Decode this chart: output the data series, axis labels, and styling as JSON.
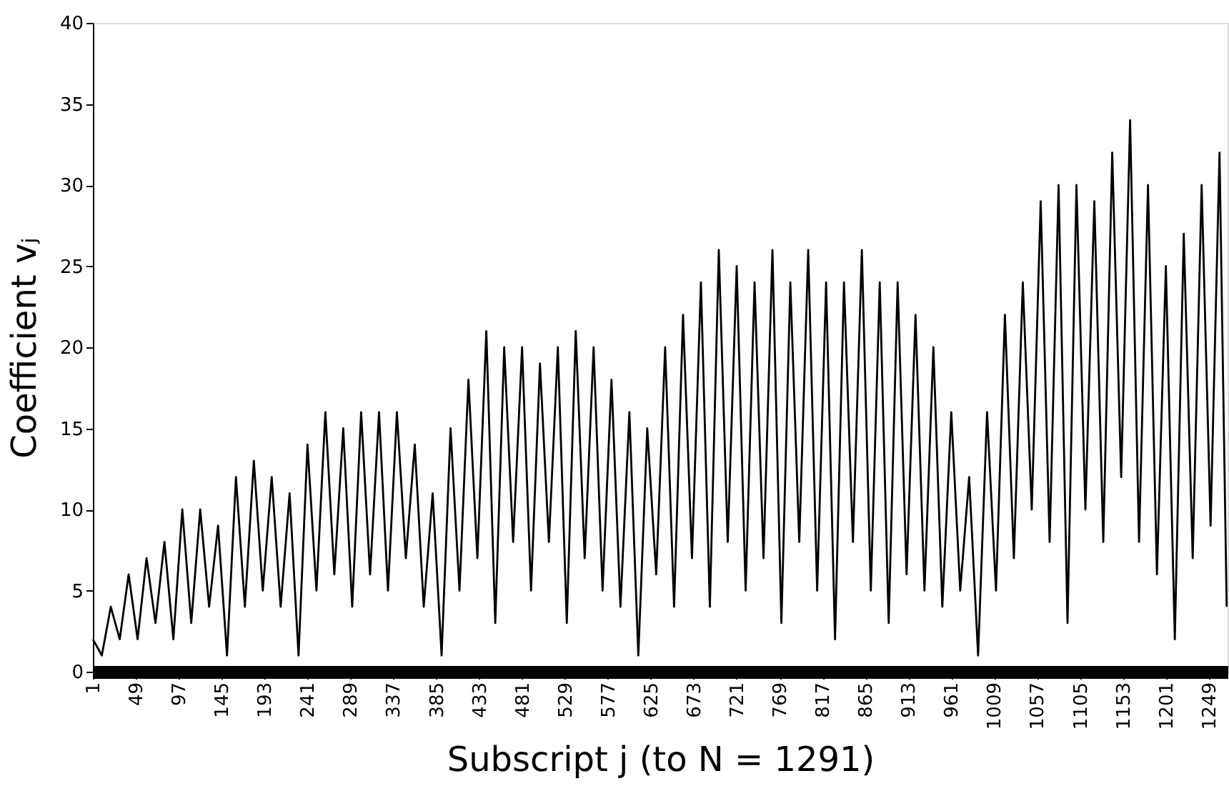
{
  "chart_data": {
    "type": "line",
    "xlabel": "Subscript j (to N = 1291)",
    "ylabel": "Coefficient vⱼ",
    "x": [
      1,
      11,
      21,
      31,
      41,
      51,
      61,
      71,
      81,
      91,
      101,
      111,
      121,
      131,
      141,
      151,
      161,
      171,
      181,
      191,
      201,
      211,
      221,
      231,
      241,
      251,
      261,
      271,
      281,
      291,
      301,
      311,
      321,
      331,
      341,
      351,
      361,
      371,
      381,
      391,
      401,
      411,
      421,
      431,
      441,
      451,
      461,
      471,
      481,
      491,
      501,
      511,
      521,
      531,
      541,
      551,
      561,
      571,
      581,
      591,
      601,
      611,
      621,
      631,
      641,
      651,
      661,
      671,
      681,
      691,
      701,
      711,
      721,
      731,
      741,
      751,
      761,
      771,
      781,
      791,
      801,
      811,
      821,
      831,
      841,
      851,
      861,
      871,
      881,
      891,
      901,
      911,
      921,
      931,
      941,
      951,
      961,
      971,
      981,
      991,
      1001,
      1011,
      1021,
      1031,
      1041,
      1051,
      1061,
      1071,
      1081,
      1091,
      1101,
      1111,
      1121,
      1131,
      1141,
      1151,
      1161,
      1171,
      1181,
      1191,
      1201,
      1211,
      1221,
      1231,
      1241,
      1251,
      1261,
      1269
    ],
    "series": [
      {
        "color": "#000000",
        "values": [
          2,
          1,
          4,
          2,
          6,
          2,
          7,
          3,
          8,
          2,
          10,
          3,
          10,
          4,
          9,
          1,
          12,
          4,
          13,
          5,
          12,
          4,
          11,
          1,
          14,
          5,
          16,
          6,
          15,
          4,
          16,
          6,
          16,
          5,
          16,
          7,
          14,
          4,
          11,
          1,
          15,
          5,
          18,
          7,
          21,
          3,
          20,
          8,
          20,
          5,
          19,
          8,
          20,
          3,
          21,
          7,
          20,
          5,
          18,
          4,
          16,
          1,
          15,
          6,
          20,
          4,
          22,
          7,
          24,
          4,
          26,
          8,
          25,
          5,
          24,
          7,
          26,
          3,
          24,
          8,
          26,
          5,
          24,
          2,
          24,
          8,
          26,
          5,
          24,
          3,
          24,
          6,
          22,
          5,
          20,
          4,
          16,
          5,
          12,
          1,
          16,
          5,
          22,
          7,
          24,
          10,
          29,
          8,
          30,
          3,
          30,
          10,
          29,
          8,
          32,
          12,
          34,
          8,
          30,
          6,
          25,
          2,
          27,
          7,
          30,
          9,
          32,
          4
        ]
      }
    ],
    "xlim": [
      1,
      1270
    ],
    "xticks": [
      1,
      49,
      97,
      145,
      193,
      241,
      289,
      337,
      385,
      433,
      481,
      529,
      577,
      625,
      673,
      721,
      769,
      817,
      865,
      913,
      961,
      1009,
      1057,
      1105,
      1153,
      1201,
      1249
    ],
    "ylim": [
      0,
      40
    ],
    "yticks": [
      0,
      5,
      10,
      15,
      20,
      25,
      30,
      35,
      40
    ],
    "grid": false,
    "legend": false,
    "marker": "none",
    "line_style": "solid"
  }
}
